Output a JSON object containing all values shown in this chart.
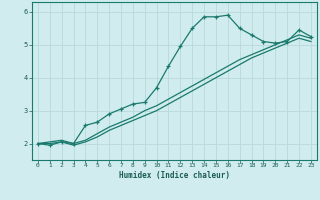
{
  "title": "",
  "xlabel": "Humidex (Indice chaleur)",
  "ylabel": "",
  "x": [
    0,
    1,
    2,
    3,
    4,
    5,
    6,
    7,
    8,
    9,
    10,
    11,
    12,
    13,
    14,
    15,
    16,
    17,
    18,
    19,
    20,
    21,
    22,
    23
  ],
  "y_main": [
    2.0,
    1.95,
    2.05,
    2.0,
    2.55,
    2.65,
    2.9,
    3.05,
    3.2,
    3.25,
    3.7,
    4.35,
    4.95,
    5.5,
    5.85,
    5.85,
    5.9,
    5.5,
    5.3,
    5.1,
    5.05,
    5.1,
    5.45,
    5.25
  ],
  "y_line1": [
    2.0,
    2.05,
    2.1,
    2.0,
    2.1,
    2.3,
    2.5,
    2.65,
    2.8,
    3.0,
    3.15,
    3.35,
    3.55,
    3.75,
    3.95,
    4.15,
    4.35,
    4.55,
    4.7,
    4.85,
    5.0,
    5.15,
    5.3,
    5.2
  ],
  "y_line2": [
    2.0,
    2.0,
    2.05,
    1.95,
    2.05,
    2.2,
    2.4,
    2.55,
    2.7,
    2.85,
    3.0,
    3.2,
    3.4,
    3.6,
    3.8,
    4.0,
    4.2,
    4.4,
    4.6,
    4.75,
    4.9,
    5.05,
    5.2,
    5.1
  ],
  "line_color": "#1a7a6e",
  "bg_color": "#d0ecee",
  "grid_color": "#b8d8da",
  "xlim": [
    -0.5,
    23.5
  ],
  "ylim": [
    1.5,
    6.3
  ],
  "yticks": [
    2,
    3,
    4,
    5,
    6
  ],
  "xticks": [
    0,
    1,
    2,
    3,
    4,
    5,
    6,
    7,
    8,
    9,
    10,
    11,
    12,
    13,
    14,
    15,
    16,
    17,
    18,
    19,
    20,
    21,
    22,
    23
  ]
}
